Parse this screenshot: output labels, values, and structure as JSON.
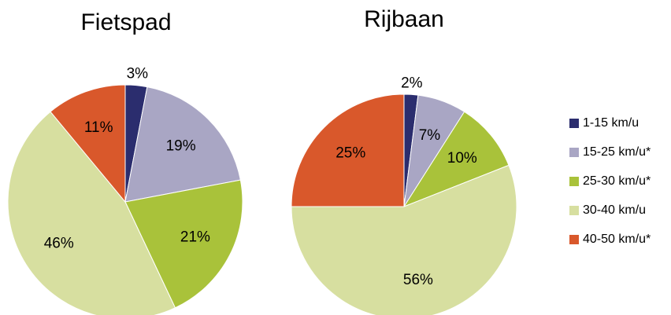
{
  "chart_data": [
    {
      "type": "pie",
      "title": "Fietspad",
      "categories": [
        "1-15 km/u",
        "15-25 km/u*",
        "25-30 km/u*",
        "30-40 km/u",
        "40-50 km/u*"
      ],
      "values": [
        3,
        19,
        21,
        46,
        11
      ],
      "value_labels": [
        "3%",
        "19%",
        "21%",
        "46%",
        "11%"
      ],
      "colors": [
        "#2b2d6e",
        "#a9a6c4",
        "#a9c23a",
        "#d7dfa0",
        "#d9582b"
      ]
    },
    {
      "type": "pie",
      "title": "Rijbaan",
      "categories": [
        "1-15 km/u",
        "15-25 km/u*",
        "25-30 km/u*",
        "30-40 km/u",
        "40-50 km/u*"
      ],
      "values": [
        2,
        7,
        10,
        56,
        25
      ],
      "value_labels": [
        "2%",
        "7%",
        "10%",
        "56%",
        "25%"
      ],
      "colors": [
        "#2b2d6e",
        "#a9a6c4",
        "#a9c23a",
        "#d7dfa0",
        "#d9582b"
      ]
    }
  ]
}
